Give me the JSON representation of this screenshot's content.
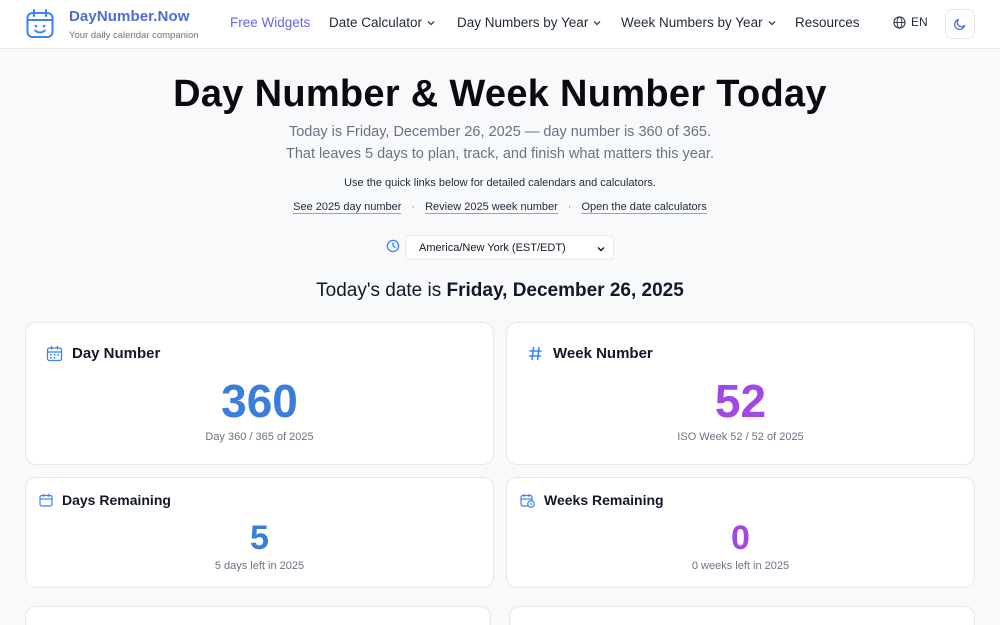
{
  "header": {
    "brand_name": "DayNumber.Now",
    "brand_tagline": "Your daily calendar companion",
    "nav": [
      {
        "label": "Free Widgets"
      },
      {
        "label": "Date Calculator"
      },
      {
        "label": "Day Numbers by Year"
      },
      {
        "label": "Week Numbers by Year"
      },
      {
        "label": "Resources"
      }
    ],
    "language": "EN"
  },
  "hero": {
    "title": "Day Number & Week Number Today",
    "line1": "Today is Friday, December 26, 2025 — day number is 360 of 365.",
    "line2": "That leaves 5 days to plan, track, and finish what matters this year.",
    "note": "Use the quick links below for detailed calendars and calculators.",
    "links": [
      "See 2025 day number",
      "Review 2025 week number",
      "Open the date calculators"
    ],
    "separator": "·"
  },
  "timezone": {
    "selected": "America/New York (EST/EDT)"
  },
  "today": {
    "prefix": "Today's date is",
    "date": "Friday, December 26, 2025"
  },
  "cards": {
    "day_number": {
      "title": "Day Number",
      "value": "360",
      "sub": "Day 360 / 365 of 2025"
    },
    "week_number": {
      "title": "Week Number",
      "value": "52",
      "sub": "ISO Week 52 / 52 of 2025"
    },
    "days_remaining": {
      "title": "Days Remaining",
      "value": "5",
      "sub": "5 days left in 2025"
    },
    "weeks_remaining": {
      "title": "Weeks Remaining",
      "value": "0",
      "sub": "0 weeks left in 2025"
    }
  },
  "colors": {
    "accent_blue": "#3b7ddd",
    "accent_purple": "#a148e6",
    "brand": "#4f6bd8",
    "nav_accent": "#6366f1"
  },
  "icons": [
    "calendar-face-icon",
    "chevron-down-icon",
    "globe-icon",
    "moon-icon",
    "clock-icon",
    "calendar-icon",
    "hash-icon",
    "calendar-clock-icon"
  ]
}
